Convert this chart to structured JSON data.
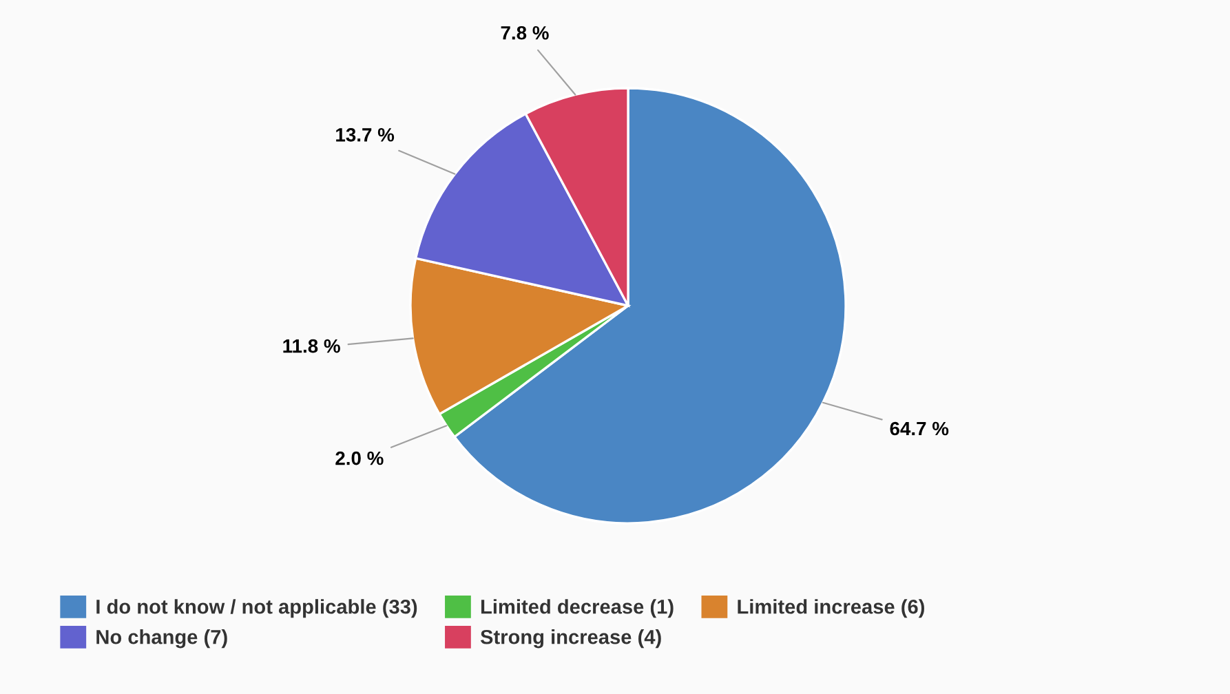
{
  "chart_data": {
    "type": "pie",
    "categories": [
      "I do not know / not applicable (33)",
      "Limited decrease (1)",
      "Limited increase (6)",
      "No change (7)",
      "Strong increase (4)"
    ],
    "values": [
      64.7,
      2.0,
      11.8,
      13.7,
      7.8
    ],
    "colors": [
      "#4a86c4",
      "#4fbf45",
      "#d9832e",
      "#6262cf",
      "#d8405f"
    ],
    "value_labels": [
      "64.7 %",
      "2.0 %",
      "11.8 %",
      "13.7 %",
      "7.8 %"
    ],
    "legend": "bottom"
  }
}
